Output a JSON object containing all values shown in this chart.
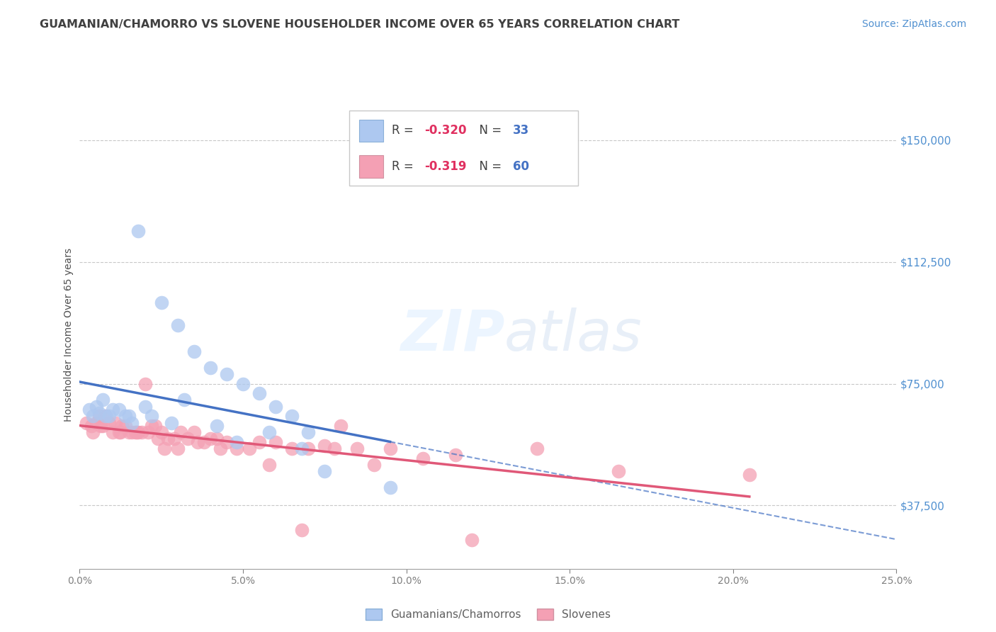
{
  "title": "GUAMANIAN/CHAMORRO VS SLOVENE HOUSEHOLDER INCOME OVER 65 YEARS CORRELATION CHART",
  "source": "Source: ZipAtlas.com",
  "ylabel": "Householder Income Over 65 years",
  "yticks": [
    37500,
    75000,
    112500,
    150000
  ],
  "ytick_labels": [
    "$37,500",
    "$75,000",
    "$112,500",
    "$150,000"
  ],
  "xmin": 0.0,
  "xmax": 25.0,
  "ymin": 18000,
  "ymax": 162000,
  "guamanian_R": "-0.320",
  "guamanian_N": "33",
  "slovene_R": "-0.319",
  "slovene_N": "60",
  "guamanian_color": "#adc8f0",
  "guamanian_line_color": "#4472c4",
  "slovene_color": "#f4a0b4",
  "slovene_line_color": "#e05878",
  "legend_label_guamanian": "Guamanians/Chamorros",
  "legend_label_slovene": "Slovenes",
  "title_color": "#404040",
  "source_color": "#5090d0",
  "r_color": "#e03060",
  "n_color": "#4472c4",
  "guamanian_x": [
    1.8,
    2.5,
    3.0,
    3.5,
    4.0,
    4.5,
    5.0,
    5.5,
    6.0,
    6.5,
    7.0,
    0.3,
    0.5,
    0.7,
    0.9,
    1.0,
    1.2,
    1.4,
    1.6,
    2.0,
    2.2,
    3.2,
    4.2,
    5.8,
    6.8,
    7.5,
    1.5,
    2.8,
    4.8,
    0.4,
    0.6,
    0.8,
    9.5
  ],
  "guamanian_y": [
    122000,
    100000,
    93000,
    85000,
    80000,
    78000,
    75000,
    72000,
    68000,
    65000,
    60000,
    67000,
    68000,
    70000,
    65000,
    67000,
    67000,
    65000,
    63000,
    68000,
    65000,
    70000,
    62000,
    60000,
    55000,
    48000,
    65000,
    63000,
    57000,
    65000,
    66000,
    65000,
    43000
  ],
  "slovene_x": [
    0.2,
    0.4,
    0.5,
    0.6,
    0.7,
    0.8,
    0.9,
    1.0,
    1.1,
    1.2,
    1.3,
    1.4,
    1.5,
    1.6,
    1.7,
    1.8,
    1.9,
    2.0,
    2.1,
    2.2,
    2.3,
    2.4,
    2.5,
    2.7,
    2.9,
    3.1,
    3.3,
    3.5,
    3.8,
    4.0,
    4.2,
    4.5,
    4.8,
    5.2,
    5.5,
    6.0,
    6.5,
    7.0,
    7.5,
    8.0,
    8.5,
    9.5,
    10.5,
    11.5,
    14.0,
    16.5,
    20.5,
    0.35,
    0.65,
    1.25,
    1.75,
    2.6,
    3.0,
    3.6,
    4.3,
    5.8,
    6.8,
    7.8,
    9.0,
    12.0
  ],
  "slovene_y": [
    63000,
    60000,
    63000,
    65000,
    62000,
    65000,
    63000,
    60000,
    63000,
    60000,
    62000,
    62000,
    60000,
    60000,
    60000,
    60000,
    60000,
    75000,
    60000,
    62000,
    62000,
    58000,
    60000,
    58000,
    58000,
    60000,
    58000,
    60000,
    57000,
    58000,
    58000,
    57000,
    55000,
    55000,
    57000,
    57000,
    55000,
    55000,
    56000,
    62000,
    55000,
    55000,
    52000,
    53000,
    55000,
    48000,
    47000,
    62000,
    62000,
    60000,
    60000,
    55000,
    55000,
    57000,
    55000,
    50000,
    30000,
    55000,
    50000,
    27000
  ]
}
